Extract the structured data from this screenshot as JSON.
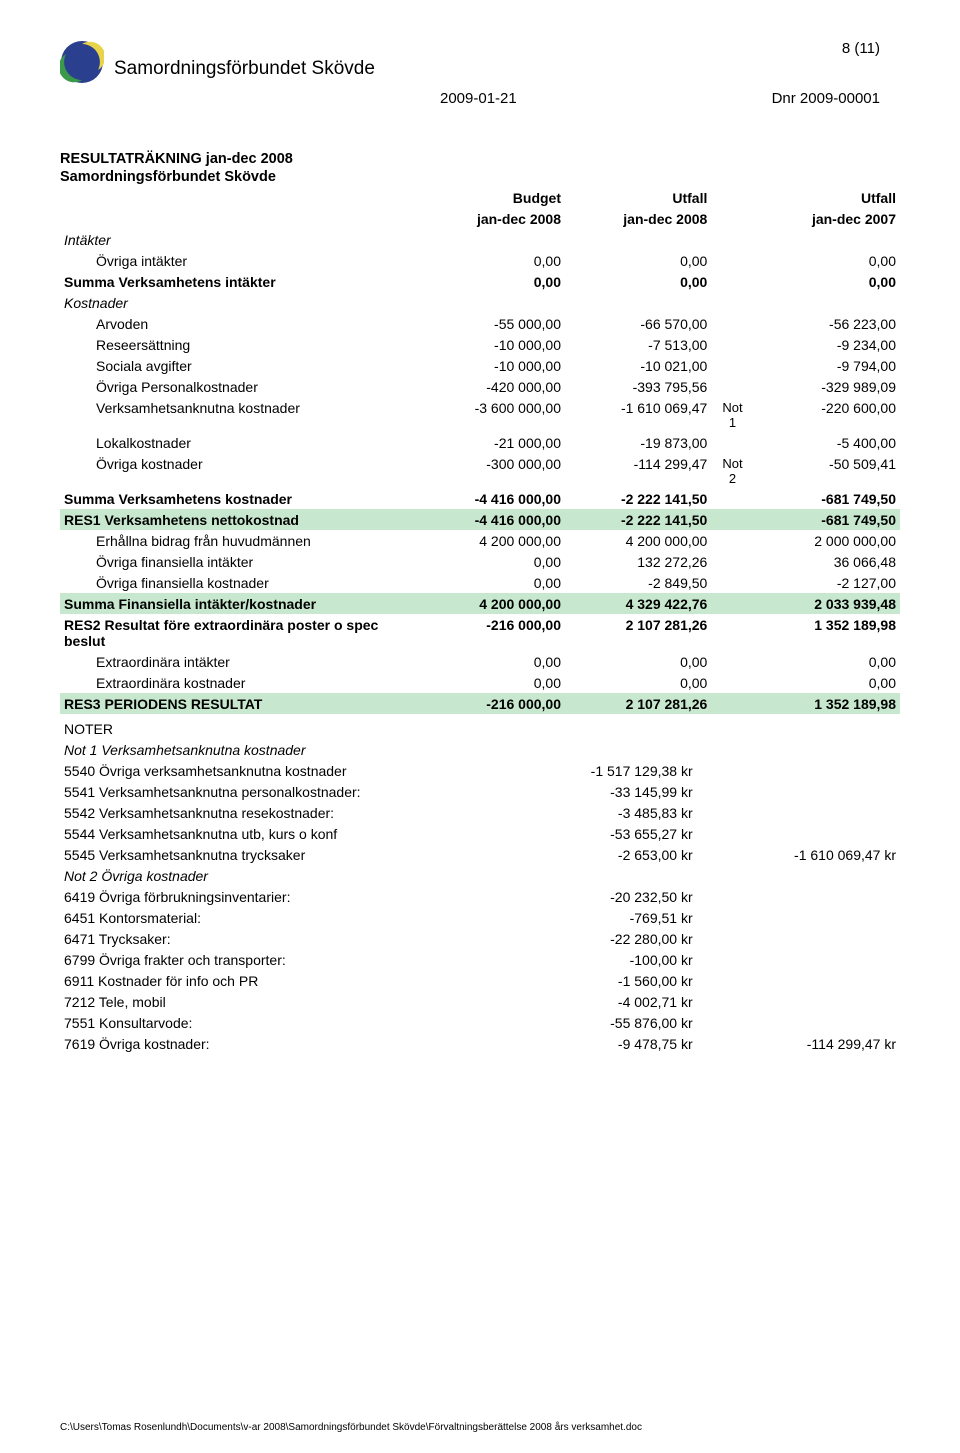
{
  "header": {
    "org_name": "Samordningsförbundet Skövde",
    "page_num": "8 (11)",
    "date": "2009-01-21",
    "dnr": "Dnr 2009-00001"
  },
  "title": "RESULTATRÄKNING jan-dec 2008",
  "subtitle": "Samordningsförbundet Skövde",
  "col_headers": {
    "c1_top": "Budget",
    "c1_bot": "jan-dec 2008",
    "c2_top": "Utfall",
    "c2_bot": "jan-dec 2008",
    "c3_top": "Utfall",
    "c3_bot": "jan-dec 2007"
  },
  "sections": {
    "intakter_label": "Intäkter",
    "kostnader_label": "Kostnader"
  },
  "rows": [
    {
      "label": "Övriga intäkter",
      "c1": "0,00",
      "c2": "0,00",
      "c3": "0,00",
      "indent": true
    },
    {
      "label": "Summa Verksamhetens intäkter",
      "c1": "0,00",
      "c2": "0,00",
      "c3": "0,00",
      "bold": true
    },
    {
      "label": "Arvoden",
      "c1": "-55 000,00",
      "c2": "-66 570,00",
      "c3": "-56 223,00",
      "indent": true
    },
    {
      "label": "Reseersättning",
      "c1": "-10 000,00",
      "c2": "-7 513,00",
      "c3": "-9 234,00",
      "indent": true
    },
    {
      "label": "Sociala avgifter",
      "c1": "-10 000,00",
      "c2": "-10 021,00",
      "c3": "-9 794,00",
      "indent": true
    },
    {
      "label": "Övriga Personalkostnader",
      "c1": "-420 000,00",
      "c2": "-393 795,56",
      "c3": "-329 989,09",
      "indent": true
    },
    {
      "label": "Verksamhetsanknutna kostnader",
      "c1": "-3 600 000,00",
      "c2": "-1 610 069,47",
      "note": "Not 1",
      "c3": "-220 600,00",
      "indent": true
    },
    {
      "label": "Lokalkostnader",
      "c1": "-21 000,00",
      "c2": "-19 873,00",
      "c3": "-5 400,00",
      "indent": true
    },
    {
      "label": "Övriga kostnader",
      "c1": "-300 000,00",
      "c2": "-114 299,47",
      "note": "Not 2",
      "c3": "-50 509,41",
      "indent": true
    },
    {
      "label": "Summa Verksamhetens kostnader",
      "c1": "-4 416 000,00",
      "c2": "-2 222 141,50",
      "c3": "-681 749,50",
      "bold": true
    },
    {
      "label": "RES1   Verksamhetens nettokostnad",
      "c1": "-4 416 000,00",
      "c2": "-2 222 141,50",
      "c3": "-681 749,50",
      "bold": true,
      "hl": true
    },
    {
      "label": "Erhållna bidrag från huvudmännen",
      "c1": "4 200 000,00",
      "c2": "4 200 000,00",
      "c3": "2 000 000,00",
      "indent": true
    },
    {
      "label": "Övriga finansiella intäkter",
      "c1": "0,00",
      "c2": "132 272,26",
      "c3": "36 066,48",
      "indent": true
    },
    {
      "label": "Övriga finansiella kostnader",
      "c1": "0,00",
      "c2": "-2 849,50",
      "c3": "-2 127,00",
      "indent": true
    },
    {
      "label": "Summa Finansiella intäkter/kostnader",
      "c1": "4 200 000,00",
      "c2": "4 329 422,76",
      "c3": "2 033 939,48",
      "bold": true,
      "hl": true
    },
    {
      "label": "RES2   Resultat före extraordinära poster o spec beslut",
      "c1": "-216 000,00",
      "c2": "2 107 281,26",
      "c3": "1 352 189,98",
      "bold": true
    },
    {
      "label": "Extraordinära intäkter",
      "c1": "0,00",
      "c2": "0,00",
      "c3": "0,00",
      "indent": true
    },
    {
      "label": "Extraordinära kostnader",
      "c1": "0,00",
      "c2": "0,00",
      "c3": "0,00",
      "indent": true
    },
    {
      "label": "RES3   PERIODENS RESULTAT",
      "c1": "-216 000,00",
      "c2": "2 107 281,26",
      "c3": "1 352 189,98",
      "bold": true,
      "hl": true
    }
  ],
  "notes": {
    "header": "NOTER",
    "n1_title": "Not 1 Verksamhetsanknutna kostnader",
    "n1_rows": [
      {
        "label": "5540 Övriga verksamhetsanknutna kostnader",
        "val": "-1 517 129,38 kr"
      },
      {
        "label": "5541 Verksamhetsanknutna personalkostnader:",
        "val": "-33 145,99 kr"
      },
      {
        "label": "5542 Verksamhetsanknutna resekostnader:",
        "val": "-3 485,83 kr"
      },
      {
        "label": "5544 Verksamhetsanknutna utb, kurs o konf",
        "val": "-53 655,27 kr"
      },
      {
        "label": "5545 Verksamhetsanknutna trycksaker",
        "val": "-2 653,00 kr",
        "sum": "-1 610 069,47 kr"
      }
    ],
    "n2_title": "Not 2 Övriga kostnader",
    "n2_rows": [
      {
        "label": "6419 Övriga förbrukningsinventarier:",
        "val": "-20 232,50 kr"
      },
      {
        "label": "6451 Kontorsmaterial:",
        "val": "-769,51 kr"
      },
      {
        "label": "6471 Trycksaker:",
        "val": "-22 280,00 kr"
      },
      {
        "label": "6799 Övriga frakter och transporter:",
        "val": "-100,00 kr"
      },
      {
        "label": "6911 Kostnader för info och PR",
        "val": "-1 560,00 kr"
      },
      {
        "label": "7212 Tele, mobil",
        "val": "-4 002,71 kr"
      },
      {
        "label": "7551 Konsultarvode:",
        "val": "-55 876,00 kr"
      },
      {
        "label": "7619 Övriga kostnader:",
        "val": "-9 478,75 kr",
        "sum": "-114 299,47 kr"
      }
    ]
  },
  "footer": "C:\\Users\\Tomas Rosenlundh\\Documents\\v-ar 2008\\Samordningsförbundet Skövde\\Förvaltningsberättelse 2008 års verksamhet.doc",
  "colors": {
    "hl_green": "#c7e8ce",
    "logo_blue": "#2b3f8f",
    "logo_yellow": "#e8d34a",
    "logo_green": "#3a9a4a"
  }
}
